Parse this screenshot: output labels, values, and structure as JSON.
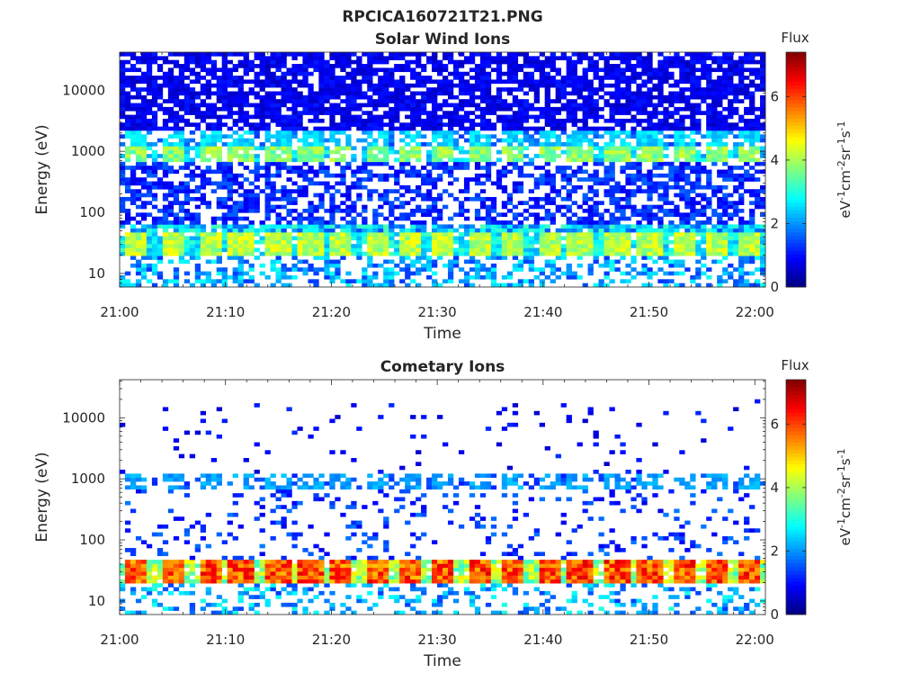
{
  "figure": {
    "title": "RPCICA160721T21.PNG"
  },
  "chart_data": [
    {
      "type": "heatmap",
      "title": "Solar Wind Ions",
      "xlabel": "Time",
      "ylabel": "Energy (eV)",
      "y_scale": "log",
      "ylim": [
        6,
        42000
      ],
      "xlim": [
        "21:00",
        "22:01"
      ],
      "x_ticks": [
        "21:00",
        "21:10",
        "21:20",
        "21:30",
        "21:40",
        "21:50",
        "22:00"
      ],
      "y_ticks": [
        "10",
        "100",
        "1000",
        "10000"
      ],
      "colorbar": {
        "title": "Flux",
        "label": "eV-1cm-2sr-1s-1",
        "min": 0,
        "max": 7.4,
        "ticks": [
          "0",
          "2",
          "4",
          "6"
        ],
        "colormap": "jet"
      },
      "pattern": "sparse",
      "bands": [
        {
          "e_low": 20,
          "e_high": 45,
          "flux": 3.9,
          "prob": 1.0,
          "pulsed": true
        },
        {
          "e_low": 45,
          "e_high": 60,
          "flux": 2.4,
          "prob": 0.9,
          "pulsed": false
        },
        {
          "e_low": 700,
          "e_high": 1300,
          "flux": 3.6,
          "prob": 0.6,
          "pulsed": true
        },
        {
          "e_low": 1300,
          "e_high": 2200,
          "flux": 2.4,
          "prob": 0.5,
          "pulsed": true
        },
        {
          "e_low": 6,
          "e_high": 20,
          "flux": 2.1,
          "prob": 0.45,
          "pulsed": false
        },
        {
          "e_low": 60,
          "e_high": 700,
          "flux": 1.2,
          "prob": 0.55,
          "pulsed": false
        },
        {
          "e_low": 2200,
          "e_high": 42000,
          "flux": 0.8,
          "prob": 0.75,
          "pulsed": false
        }
      ],
      "pulse_minutes": [
        1.5,
        5,
        8.5,
        11.5,
        15,
        18,
        21,
        24.5,
        27.5,
        30.5,
        34,
        37,
        40.5,
        43.5,
        47,
        50,
        53.5,
        56.5,
        59.5
      ]
    },
    {
      "type": "heatmap",
      "title": "Cometary Ions",
      "xlabel": "Time",
      "ylabel": "Energy (eV)",
      "y_scale": "log",
      "ylim": [
        6,
        42000
      ],
      "xlim": [
        "21:00",
        "22:01"
      ],
      "x_ticks": [
        "21:00",
        "21:10",
        "21:20",
        "21:30",
        "21:40",
        "21:50",
        "22:00"
      ],
      "y_ticks": [
        "10",
        "100",
        "1000",
        "10000"
      ],
      "colorbar": {
        "title": "Flux",
        "label": "eV-1cm-2sr-1s-1",
        "min": 0,
        "max": 7.4,
        "ticks": [
          "0",
          "2",
          "4",
          "6"
        ],
        "colormap": "jet"
      },
      "pattern": "sparse",
      "bands": [
        {
          "e_low": 20,
          "e_high": 45,
          "flux": 5.6,
          "prob": 1.0,
          "pulsed": true
        },
        {
          "e_low": 700,
          "e_high": 1200,
          "flux": 2.0,
          "prob": 0.35,
          "pulsed": true
        },
        {
          "e_low": 6,
          "e_high": 20,
          "flux": 2.2,
          "prob": 0.3,
          "pulsed": false
        },
        {
          "e_low": 45,
          "e_high": 700,
          "flux": 1.3,
          "prob": 0.15,
          "pulsed": false
        },
        {
          "e_low": 1200,
          "e_high": 20000,
          "flux": 0.9,
          "prob": 0.04,
          "pulsed": false
        }
      ],
      "pulse_minutes": [
        1.5,
        5,
        8.5,
        11.5,
        15,
        18,
        21,
        24.5,
        27.5,
        30.5,
        34,
        37,
        40.5,
        43.5,
        47,
        50,
        53.5,
        56.5,
        59.5
      ]
    }
  ]
}
